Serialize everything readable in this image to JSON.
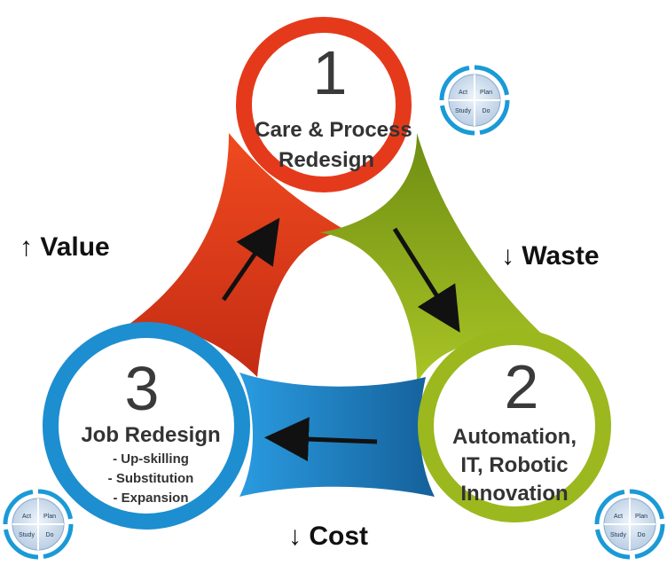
{
  "steps": [
    {
      "number": "1",
      "title_line1": "Care & Process",
      "title_line2": "Redesign",
      "color": "#e43a1b"
    },
    {
      "number": "2",
      "title_line1": "Automation,",
      "title_line2": "IT, Robotic",
      "title_line3": "Innovation",
      "color": "#9bb81f"
    },
    {
      "number": "3",
      "title_line1": "Job Redesign",
      "bullets": [
        "- Up-skilling",
        "- Substitution",
        "- Expansion"
      ],
      "color": "#1d8ed0"
    }
  ],
  "outcomes": {
    "value": "↑ Value",
    "waste": "↓ Waste",
    "cost": "↓ Cost"
  },
  "pdsa": {
    "act": "Act",
    "plan": "Plan",
    "study": "Study",
    "do": "Do"
  },
  "colors": {
    "red": "#e43a1b",
    "green": "#9bb81f",
    "blue": "#1d8ed0",
    "pdsa_ring": "#1a9ad6",
    "pdsa_fill": "#c9dbed"
  }
}
